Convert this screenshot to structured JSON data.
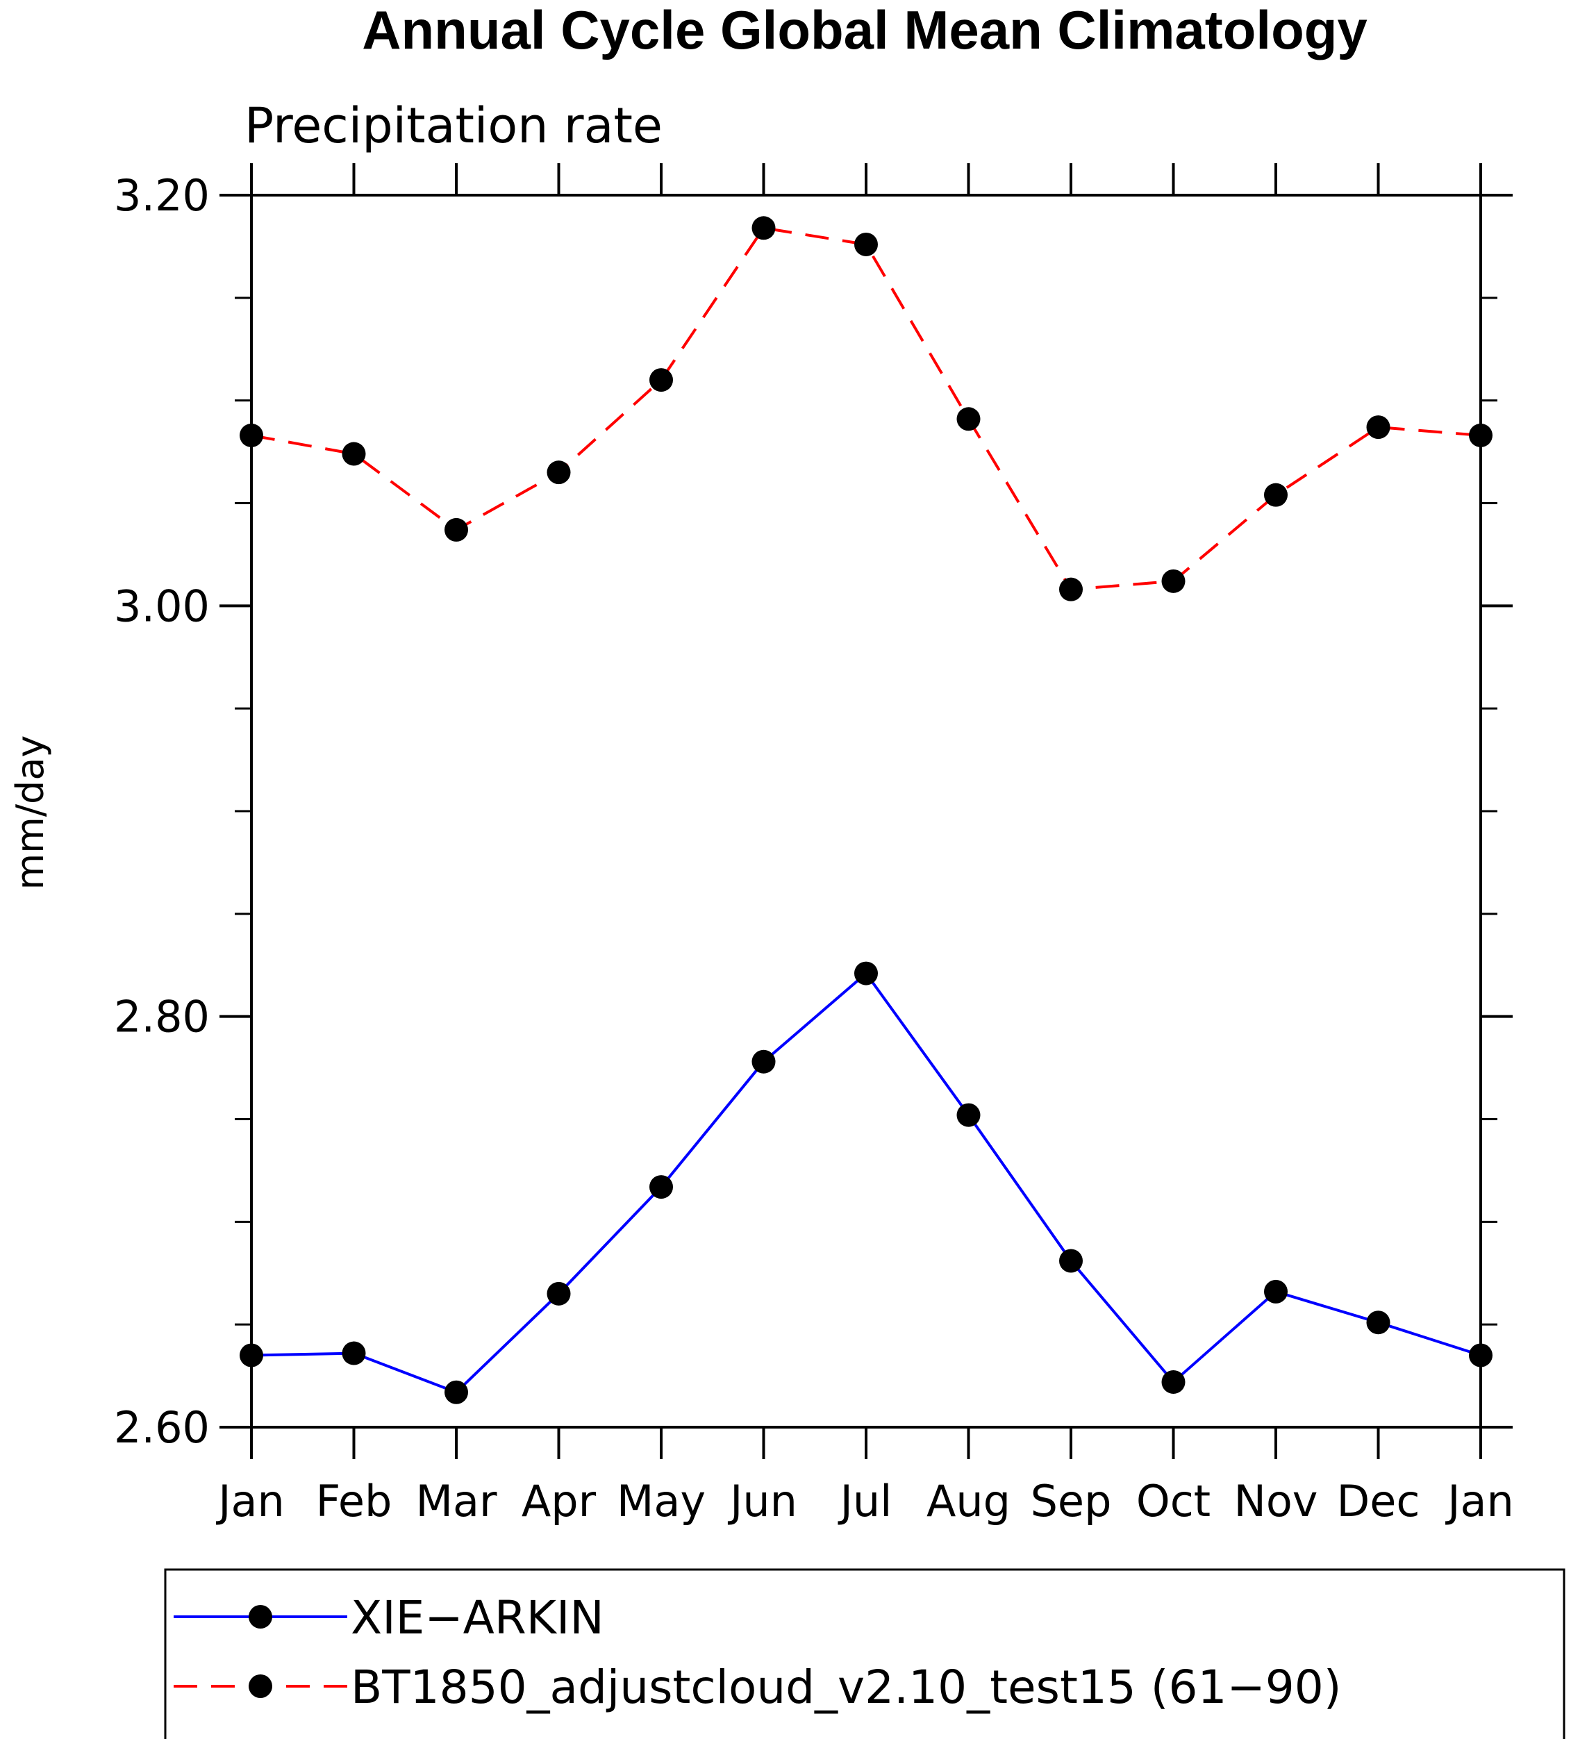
{
  "chart_data": {
    "type": "line",
    "title": "Annual Cycle Global Mean Climatology",
    "subtitle": "Precipitation rate",
    "xlabel": "",
    "ylabel": "mm/day",
    "categories": [
      "Jan",
      "Feb",
      "Mar",
      "Apr",
      "May",
      "Jun",
      "Jul",
      "Aug",
      "Sep",
      "Oct",
      "Nov",
      "Dec",
      "Jan"
    ],
    "ylim": [
      2.6,
      3.2
    ],
    "yticks": [
      "2.60",
      "2.80",
      "3.00",
      "3.20"
    ],
    "series": [
      {
        "name": "XIE−ARKIN",
        "color": "#0000ff",
        "dash": "solid",
        "values": [
          2.635,
          2.636,
          2.617,
          2.665,
          2.717,
          2.778,
          2.821,
          2.752,
          2.681,
          2.622,
          2.666,
          2.651,
          2.635
        ]
      },
      {
        "name": "BT1850_adjustcloud_v2.10_test15 (61−90)",
        "color": "#ff0000",
        "dash": "dashed",
        "values": [
          3.083,
          3.074,
          3.037,
          3.065,
          3.11,
          3.184,
          3.176,
          3.091,
          3.008,
          3.012,
          3.054,
          3.087,
          3.083
        ]
      }
    ],
    "legend": "bottom",
    "grid": false
  }
}
